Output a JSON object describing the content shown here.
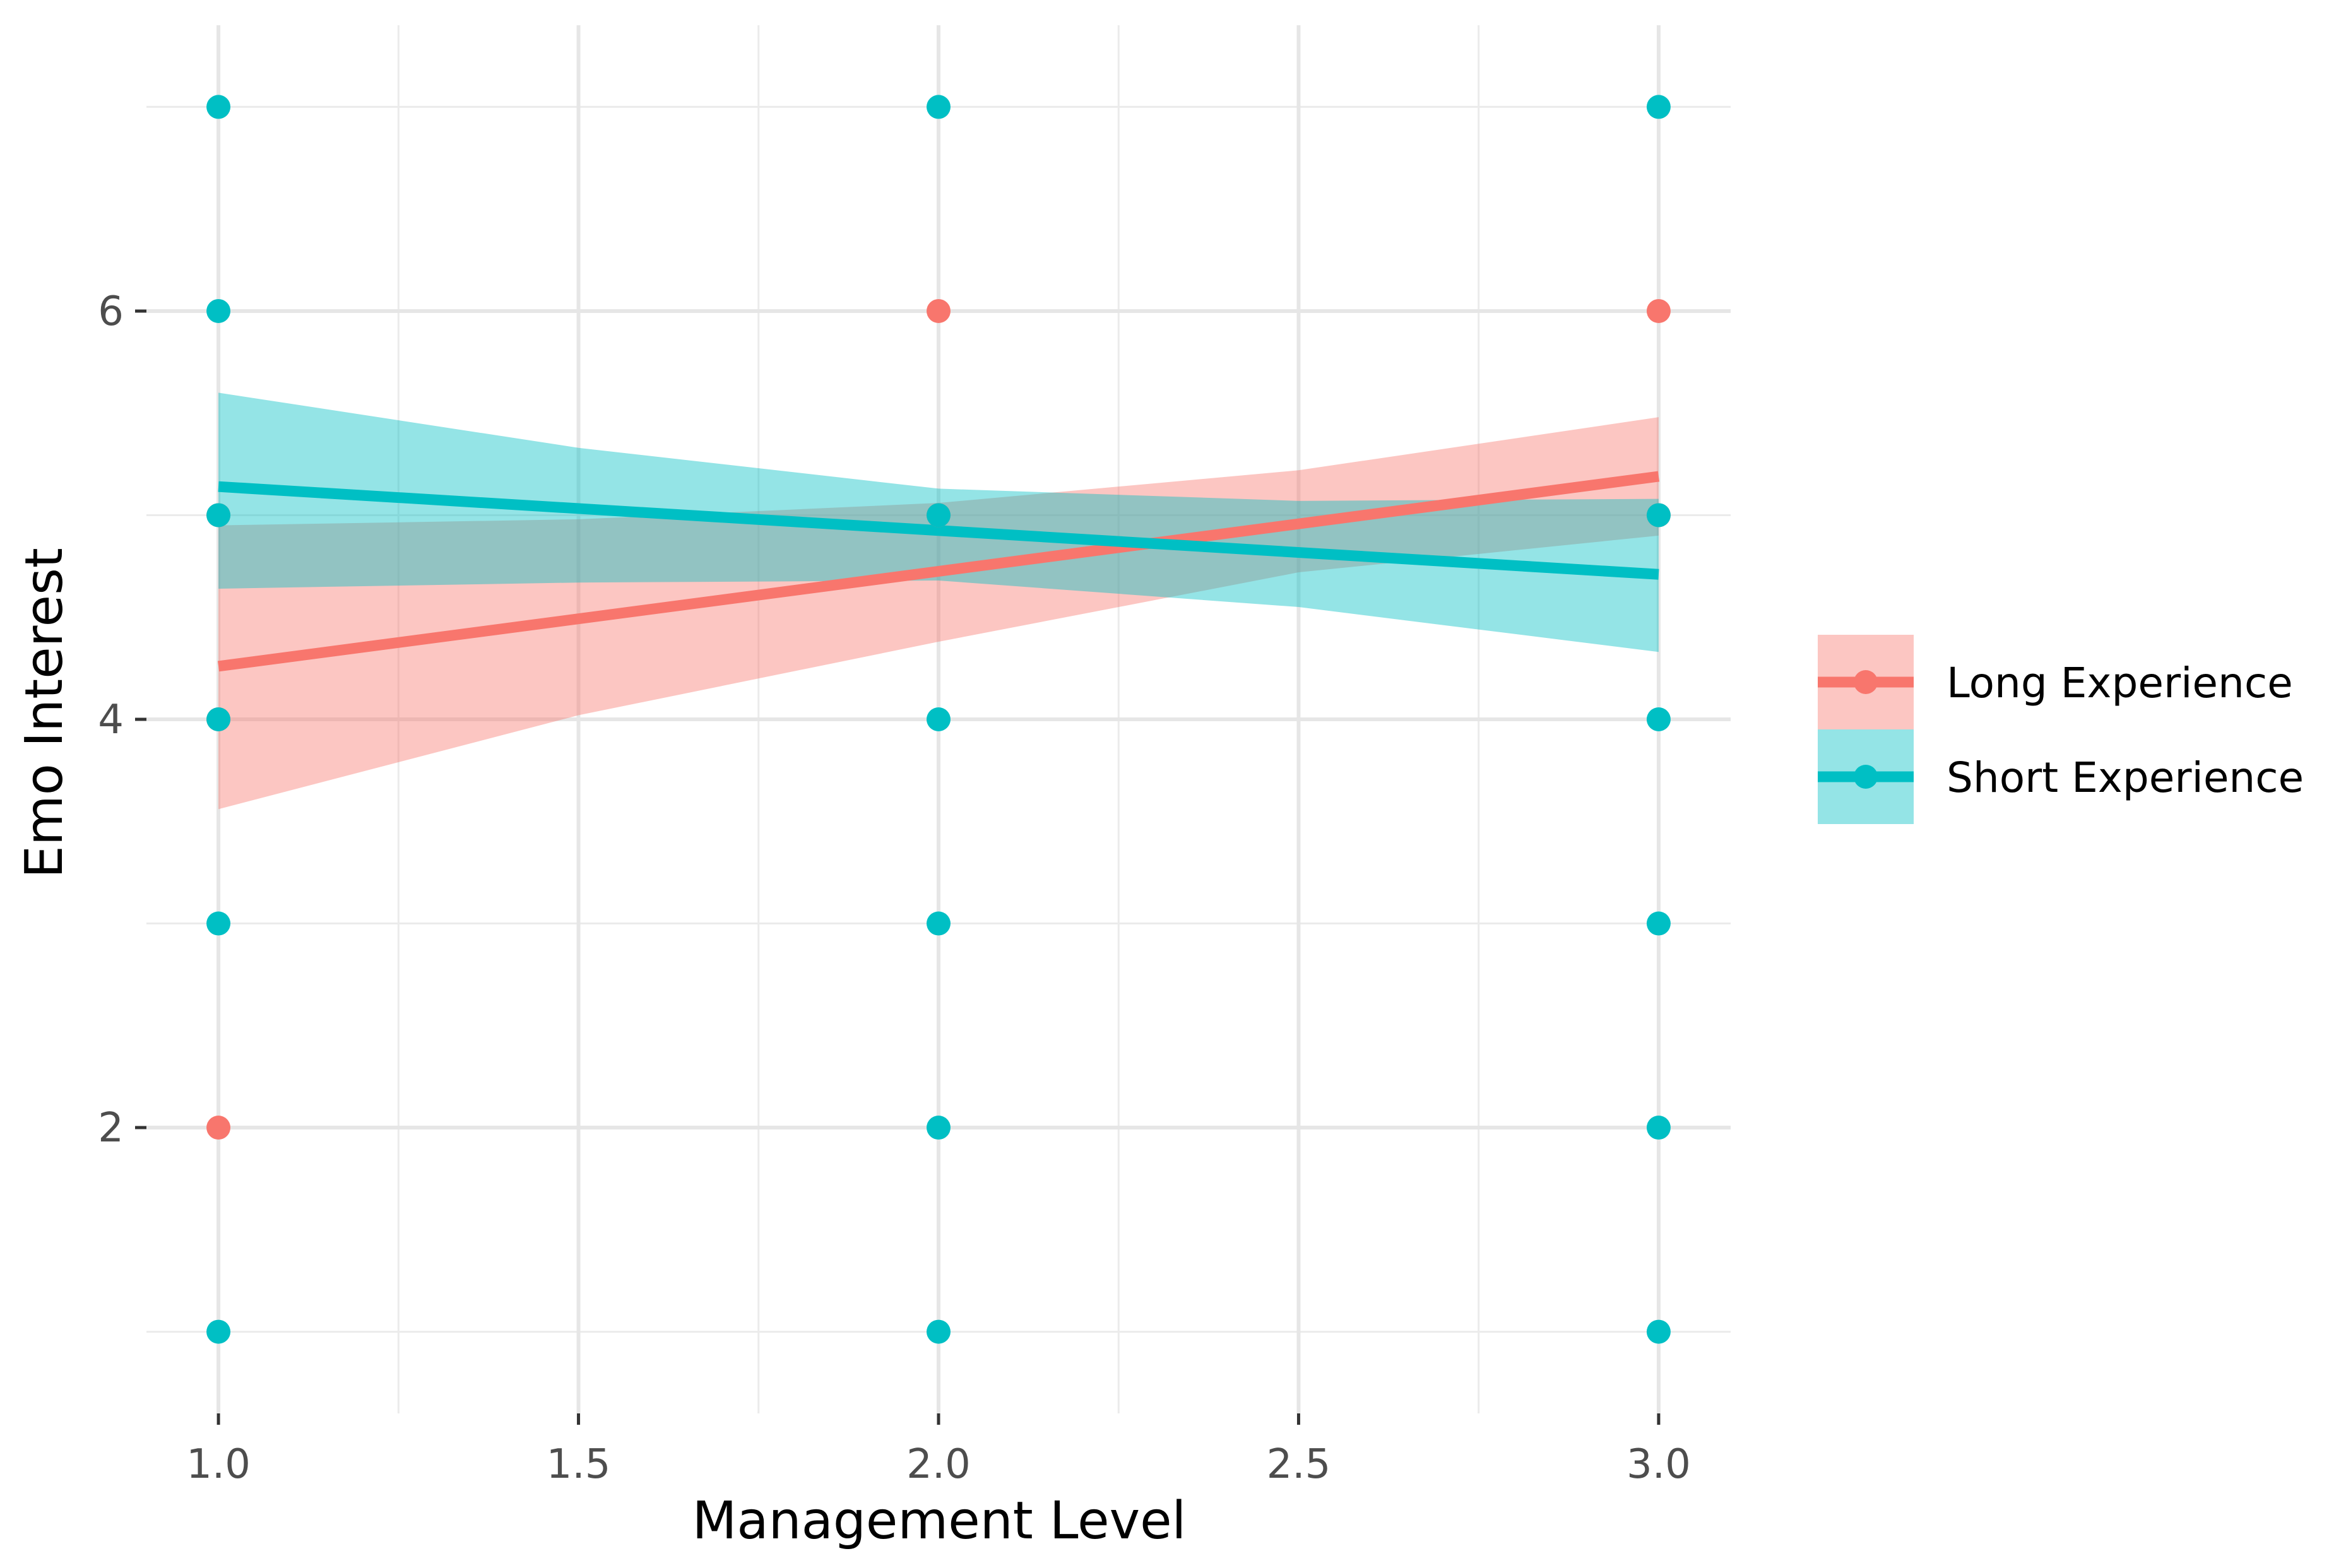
{
  "chart_data": {
    "type": "scatter",
    "title": "",
    "xlabel": "Management Level",
    "ylabel": "Emo Interest",
    "xlim": [
      0.9,
      3.1
    ],
    "ylim": [
      0.6,
      7.4
    ],
    "x_ticks": [
      1.0,
      1.5,
      2.0,
      2.5,
      3.0
    ],
    "x_tick_labels": [
      "1.0",
      "1.5",
      "2.0",
      "2.5",
      "3.0"
    ],
    "y_ticks": [
      2,
      4,
      6
    ],
    "y_tick_labels": [
      "2",
      "4",
      "6"
    ],
    "y_minor_gridlines": [
      1,
      3,
      5,
      7
    ],
    "x_minor_gridlines": [
      1.25,
      1.75,
      2.25,
      2.75
    ],
    "grid": true,
    "legend_position": "right",
    "series": [
      {
        "name": "Long Experience",
        "color": "#F8766D",
        "points": [
          {
            "x": 1,
            "y": 2
          },
          {
            "x": 1,
            "y": 4
          },
          {
            "x": 1,
            "y": 5
          },
          {
            "x": 2,
            "y": 6
          },
          {
            "x": 2,
            "y": 5
          },
          {
            "x": 3,
            "y": 6
          },
          {
            "x": 3,
            "y": 5
          }
        ],
        "fit": {
          "x": [
            1,
            3
          ],
          "y": [
            4.26,
            5.19
          ]
        },
        "band": {
          "x": [
            1,
            1.5,
            2,
            2.5,
            3
          ],
          "lower": [
            3.56,
            4.02,
            4.38,
            4.72,
            4.9
          ],
          "upper": [
            4.95,
            4.98,
            5.06,
            5.22,
            5.48
          ]
        }
      },
      {
        "name": "Short Experience",
        "color": "#00BFC4",
        "points": [
          {
            "x": 1,
            "y": 1
          },
          {
            "x": 1,
            "y": 3
          },
          {
            "x": 1,
            "y": 4
          },
          {
            "x": 1,
            "y": 5
          },
          {
            "x": 1,
            "y": 6
          },
          {
            "x": 1,
            "y": 7
          },
          {
            "x": 2,
            "y": 1
          },
          {
            "x": 2,
            "y": 2
          },
          {
            "x": 2,
            "y": 3
          },
          {
            "x": 2,
            "y": 4
          },
          {
            "x": 2,
            "y": 5
          },
          {
            "x": 2,
            "y": 7
          },
          {
            "x": 3,
            "y": 1
          },
          {
            "x": 3,
            "y": 2
          },
          {
            "x": 3,
            "y": 3
          },
          {
            "x": 3,
            "y": 4
          },
          {
            "x": 3,
            "y": 5
          },
          {
            "x": 3,
            "y": 7
          }
        ],
        "fit": {
          "x": [
            1,
            3
          ],
          "y": [
            5.14,
            4.71
          ]
        },
        "band": {
          "x": [
            1,
            1.5,
            2,
            2.5,
            3
          ],
          "lower": [
            4.64,
            4.67,
            4.68,
            4.55,
            4.33
          ],
          "upper": [
            5.6,
            5.33,
            5.13,
            5.07,
            5.08
          ]
        }
      }
    ]
  }
}
